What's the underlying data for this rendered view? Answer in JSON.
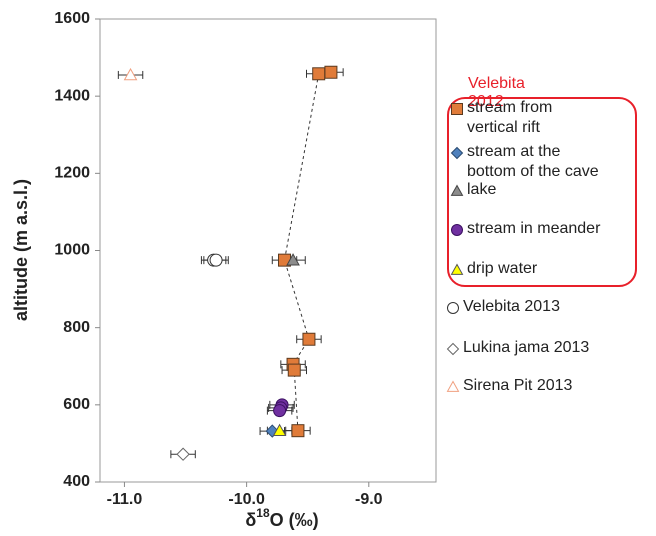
{
  "chart_data": {
    "type": "scatter",
    "ylabel": "altitude (m a.s.l.)",
    "xlabel": {
      "before": "δ",
      "superscript": "18",
      "after": "O (‰)"
    },
    "xlim": [
      -11.2,
      -8.45
    ],
    "ylim": [
      400,
      1600
    ],
    "xticks": [
      {
        "value": -11,
        "label": "-11.0"
      },
      {
        "value": -10,
        "label": "-10.0"
      },
      {
        "value": -9,
        "label": "-9.0"
      }
    ],
    "yticks": [
      400,
      600,
      800,
      1000,
      1200,
      1400,
      1600
    ],
    "legend_title": "Velebita 2012",
    "legend_title_color": "#e8202a",
    "series": [
      {
        "name": "stream from vertical rift",
        "marker": "square",
        "color": "#e07b39",
        "edge": "#5a3a20",
        "boxed": true,
        "trend": true,
        "x": [
          -9.31,
          -9.41,
          -9.69,
          -9.49,
          -9.62,
          -9.61,
          -9.58
        ],
        "y": [
          1462,
          1458,
          975,
          770,
          705,
          690,
          533
        ],
        "xerr": [
          0.1,
          0.1,
          0.1,
          0.1,
          0.1,
          0.1,
          0.1
        ]
      },
      {
        "name": "stream at the bottom of the cave",
        "marker": "diamond",
        "color": "#4f81bd",
        "edge": "#2a4a70",
        "boxed": true,
        "x": [
          -9.79
        ],
        "y": [
          532
        ],
        "xerr": [
          0.1
        ]
      },
      {
        "name": "lake",
        "marker": "triangle",
        "color": "#8c8c8c",
        "edge": "#444444",
        "boxed": true,
        "x": [
          -9.62
        ],
        "y": [
          975
        ],
        "xerr": [
          0.1
        ]
      },
      {
        "name": "stream in meander",
        "marker": "circle",
        "color": "#7030a0",
        "edge": "#3a1060",
        "boxed": true,
        "x": [
          -9.71,
          -9.72,
          -9.73
        ],
        "y": [
          600,
          592,
          585
        ],
        "xerr": [
          0.1,
          0.1,
          0.1
        ]
      },
      {
        "name": "drip water",
        "marker": "triangle",
        "color": "#ffff00",
        "edge": "#555555",
        "boxed": true,
        "x": [
          -9.73
        ],
        "y": [
          533
        ],
        "xerr": [
          0.1
        ]
      },
      {
        "name": "Velebita 2013",
        "marker": "circle",
        "color": "#ffffff",
        "edge": "#333333",
        "boxed": false,
        "x": [
          -10.27,
          -10.25
        ],
        "y": [
          975,
          975
        ],
        "xerr": [
          0.1,
          0.1
        ]
      },
      {
        "name": "Lukina jama 2013",
        "marker": "diamond",
        "color": "#ffffff",
        "edge": "#666666",
        "boxed": false,
        "x": [
          -10.52
        ],
        "y": [
          472
        ],
        "xerr": [
          0.1
        ]
      },
      {
        "name": "Sirena Pit 2013",
        "marker": "triangle",
        "color": "#ffffff",
        "edge": "#f0a080",
        "boxed": false,
        "x": [
          -10.95
        ],
        "y": [
          1455
        ],
        "xerr": [
          0.1
        ]
      }
    ]
  }
}
